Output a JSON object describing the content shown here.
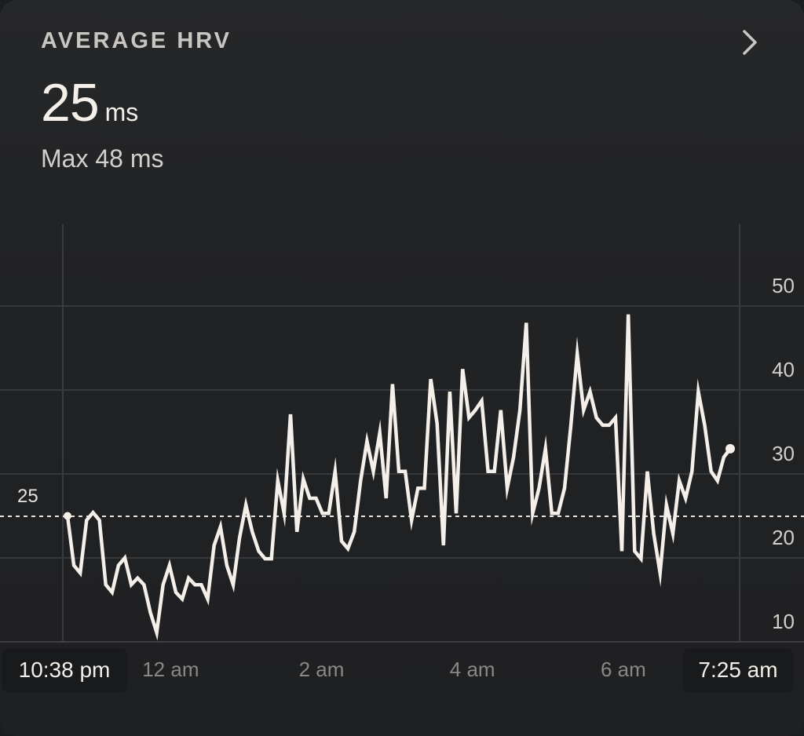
{
  "header": {
    "title": "AVERAGE HRV",
    "value": "25",
    "unit": "ms",
    "max_text": "Max 48 ms"
  },
  "chart_data": {
    "type": "line",
    "title": "AVERAGE HRV",
    "xlabel": "",
    "ylabel": "",
    "ylim": [
      8,
      55
    ],
    "y_ticks": [
      "50",
      "40",
      "30",
      "20",
      "10"
    ],
    "y_tick_values": [
      50,
      40,
      30,
      20,
      10
    ],
    "average_value": 25,
    "average_label": "25",
    "x_ticks": [
      "12 am",
      "2 am",
      "4 am",
      "6 am"
    ],
    "x_start_label": "10:38 pm",
    "x_end_label": "7:25 am",
    "x_start_hours": -1.367,
    "x_end_hours": 7.417,
    "x_tick_hours": [
      0,
      2,
      4,
      6
    ],
    "grid": "horizontal",
    "series": [
      {
        "values": [
          23.0,
          17.1,
          16.2,
          22.5,
          23.4,
          22.5,
          14.8,
          13.9,
          17.1,
          18.0,
          14.8,
          15.6,
          14.8,
          11.5,
          9.1,
          14.8,
          17.1,
          13.9,
          13.1,
          15.6,
          14.8,
          14.8,
          13.1,
          19.5,
          21.7,
          17.1,
          14.8,
          20.4,
          24.3,
          21.1,
          18.8,
          17.9,
          17.9,
          27.2,
          23.3,
          35.1,
          21.1,
          27.4,
          25.1,
          25.1,
          23.3,
          23.3,
          28.3,
          20.0,
          19.1,
          21.1,
          27.2,
          31.9,
          28.3,
          32.9,
          25.1,
          38.7,
          28.3,
          28.3,
          22.5,
          26.3,
          26.3,
          39.3,
          34.0,
          19.5,
          37.8,
          23.3,
          40.5,
          34.7,
          35.6,
          36.7,
          28.3,
          28.3,
          35.6,
          26.3,
          30.0,
          35.6,
          46.0,
          23.3,
          26.3,
          31.0,
          23.3,
          23.3,
          26.3,
          33.8,
          42.3,
          35.6,
          37.8,
          34.7,
          33.8,
          33.8,
          34.7,
          18.8,
          47.0,
          18.8,
          17.9,
          28.3,
          20.9,
          16.2,
          24.3,
          20.9,
          27.2,
          25.1,
          28.3,
          37.8,
          33.8,
          28.3,
          27.2,
          30.0,
          31.0
        ]
      }
    ]
  }
}
